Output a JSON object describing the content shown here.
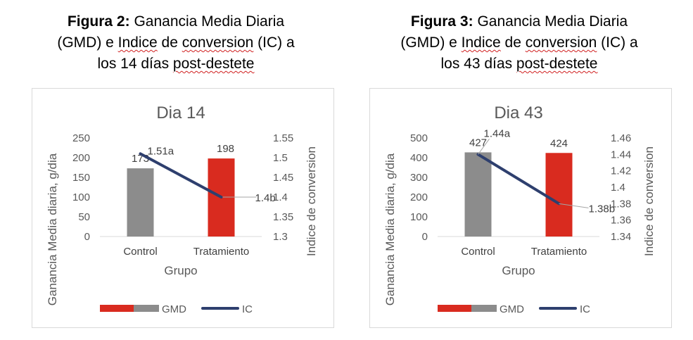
{
  "figures": [
    {
      "caption": {
        "prefix": "Figura 2:",
        "line1_rest": "Ganancia Media Diaria",
        "line2_a": "(GMD) e ",
        "line2_b": "Indice",
        "line2_c": " de ",
        "line2_d": "conversion",
        "line2_e": " (IC) a",
        "line3_a": "los 14 días ",
        "line3_b": "post-destete"
      },
      "legend": {
        "gmd": "GMD",
        "ic": "IC"
      }
    },
    {
      "caption": {
        "prefix": "Figura 3:",
        "line1_rest": "Ganancia Media Diaria",
        "line2_a": "(GMD) e ",
        "line2_b": "Indice",
        "line2_c": " de ",
        "line2_d": "conversion",
        "line2_e": " (IC) a",
        "line3_a": "los 43 días ",
        "line3_b": "post-destete"
      },
      "legend": {
        "gmd": "GMD",
        "ic": "IC"
      }
    }
  ],
  "chart_data": [
    {
      "type": "bar",
      "title": "Dia 14",
      "xlabel": "Grupo",
      "ylabel": "Ganancia Media diaria, g/dia",
      "y2label": "Indice de conversion",
      "categories": [
        "Control",
        "Tratamiento"
      ],
      "ylim": [
        0,
        250
      ],
      "yticks": [
        "0",
        "50",
        "100",
        "150",
        "200",
        "250"
      ],
      "y2lim": [
        1.3,
        1.55
      ],
      "y2ticks": [
        "1.3",
        "1.35",
        "1.4",
        "1.45",
        "1.5",
        "1.55"
      ],
      "series": [
        {
          "name": "GMD",
          "kind": "bar",
          "values": [
            173,
            198
          ],
          "labels": [
            "173",
            "198"
          ],
          "colors": [
            "#8c8c8c",
            "#d92b1f"
          ]
        },
        {
          "name": "IC",
          "kind": "line",
          "axis": "secondary",
          "values": [
            1.51,
            1.4
          ],
          "labels": [
            "1.51a",
            "1.4b"
          ],
          "color": "#2e3f6e"
        }
      ]
    },
    {
      "type": "bar",
      "title": "Dia 43",
      "xlabel": "Grupo",
      "ylabel": "Ganancia Media diaria, g/dia",
      "y2label": "Indice de conversion",
      "categories": [
        "Control",
        "Tratamiento"
      ],
      "ylim": [
        0,
        500
      ],
      "yticks": [
        "0",
        "100",
        "200",
        "300",
        "400",
        "500"
      ],
      "y2lim": [
        1.34,
        1.46
      ],
      "y2ticks": [
        "1.34",
        "1.36",
        "1.38",
        "1.4",
        "1.42",
        "1.44",
        "1.46"
      ],
      "series": [
        {
          "name": "GMD",
          "kind": "bar",
          "values": [
            427,
            424
          ],
          "labels": [
            "427",
            "424"
          ],
          "colors": [
            "#8c8c8c",
            "#d92b1f"
          ]
        },
        {
          "name": "IC",
          "kind": "line",
          "axis": "secondary",
          "values": [
            1.44,
            1.38
          ],
          "labels": [
            "1.44a",
            "1.38b"
          ],
          "color": "#2e3f6e"
        }
      ]
    }
  ]
}
